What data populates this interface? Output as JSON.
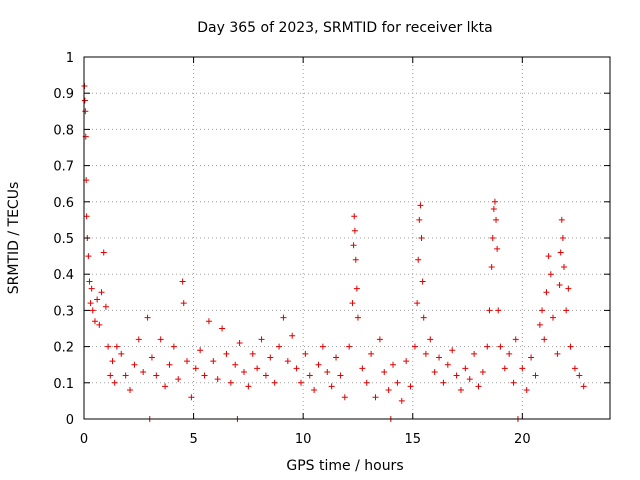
{
  "chart_data": {
    "type": "scatter",
    "title": "Day 365 of 2023, SRMTID for receiver lkta",
    "xlabel": "GPS time / hours",
    "ylabel": "SRMTID / TECUs",
    "xlim": [
      0,
      24
    ],
    "ylim": [
      0,
      1
    ],
    "x_ticks": [
      0,
      5,
      10,
      15,
      20
    ],
    "x_tick_labels": [
      "0",
      "5",
      "10",
      "15",
      "20"
    ],
    "y_ticks": [
      0,
      0.1,
      0.2,
      0.3,
      0.4,
      0.5,
      0.6,
      0.7,
      0.8,
      0.9,
      1
    ],
    "y_tick_labels": [
      "0",
      "0.1",
      "0.2",
      "0.3",
      "0.4",
      "0.5",
      "0.6",
      "0.7",
      "0.8",
      "0.9",
      "1"
    ],
    "grid": true,
    "marker": "+",
    "color": "#e00000",
    "series": [
      {
        "name": "SRMTID",
        "x": [
          0.02,
          0.04,
          0.06,
          0.08,
          0.1,
          0.12,
          0.15,
          0.2,
          0.25,
          0.3,
          0.35,
          0.4,
          0.5,
          0.6,
          0.7,
          0.8,
          0.9,
          1.0,
          1.1,
          1.2,
          1.3,
          1.4,
          1.5,
          1.7,
          1.9,
          2.1,
          2.3,
          2.5,
          2.7,
          2.9,
          3.0,
          3.1,
          3.3,
          3.5,
          3.7,
          3.9,
          4.1,
          4.3,
          4.5,
          4.55,
          4.7,
          4.9,
          5.1,
          5.3,
          5.5,
          5.7,
          5.9,
          6.1,
          6.3,
          6.5,
          6.7,
          6.9,
          7.0,
          7.1,
          7.3,
          7.5,
          7.7,
          7.9,
          8.1,
          8.3,
          8.5,
          8.7,
          8.9,
          9.1,
          9.3,
          9.5,
          9.7,
          9.9,
          10.1,
          10.3,
          10.5,
          10.7,
          10.9,
          11.1,
          11.3,
          11.5,
          11.7,
          11.9,
          12.1,
          12.25,
          12.3,
          12.33,
          12.36,
          12.4,
          12.45,
          12.5,
          12.7,
          12.9,
          13.1,
          13.3,
          13.5,
          13.7,
          13.9,
          14.0,
          14.1,
          14.3,
          14.5,
          14.7,
          14.9,
          15.1,
          15.2,
          15.25,
          15.3,
          15.35,
          15.4,
          15.45,
          15.5,
          15.6,
          15.8,
          16.0,
          16.2,
          16.4,
          16.6,
          16.8,
          17.0,
          17.2,
          17.4,
          17.6,
          17.8,
          18.0,
          18.2,
          18.4,
          18.5,
          18.6,
          18.65,
          18.7,
          18.75,
          18.8,
          18.85,
          18.9,
          19.0,
          19.2,
          19.4,
          19.6,
          19.7,
          19.8,
          20.0,
          20.2,
          20.4,
          20.6,
          20.8,
          20.9,
          21.0,
          21.1,
          21.2,
          21.3,
          21.4,
          21.6,
          21.7,
          21.75,
          21.8,
          21.85,
          21.9,
          22.0,
          22.1,
          22.2,
          22.4,
          22.6,
          22.8
        ],
        "y": [
          0.92,
          0.88,
          0.85,
          0.78,
          0.66,
          0.56,
          0.5,
          0.45,
          0.38,
          0.32,
          0.36,
          0.3,
          0.27,
          0.33,
          0.26,
          0.35,
          0.46,
          0.31,
          0.2,
          0.12,
          0.16,
          0.1,
          0.2,
          0.18,
          0.12,
          0.08,
          0.15,
          0.22,
          0.13,
          0.28,
          0.0,
          0.17,
          0.12,
          0.22,
          0.09,
          0.15,
          0.2,
          0.11,
          0.38,
          0.32,
          0.16,
          0.06,
          0.14,
          0.19,
          0.12,
          0.27,
          0.16,
          0.11,
          0.25,
          0.18,
          0.1,
          0.15,
          0.0,
          0.21,
          0.13,
          0.09,
          0.18,
          0.14,
          0.22,
          0.12,
          0.17,
          0.1,
          0.2,
          0.28,
          0.16,
          0.23,
          0.14,
          0.1,
          0.18,
          0.12,
          0.08,
          0.15,
          0.2,
          0.13,
          0.09,
          0.17,
          0.12,
          0.06,
          0.2,
          0.32,
          0.48,
          0.56,
          0.52,
          0.44,
          0.36,
          0.28,
          0.14,
          0.1,
          0.18,
          0.06,
          0.22,
          0.13,
          0.08,
          0.0,
          0.15,
          0.1,
          0.05,
          0.16,
          0.09,
          0.2,
          0.32,
          0.44,
          0.55,
          0.59,
          0.5,
          0.38,
          0.28,
          0.18,
          0.22,
          0.13,
          0.17,
          0.1,
          0.15,
          0.19,
          0.12,
          0.08,
          0.14,
          0.11,
          0.18,
          0.09,
          0.13,
          0.2,
          0.3,
          0.42,
          0.5,
          0.58,
          0.6,
          0.55,
          0.47,
          0.3,
          0.2,
          0.14,
          0.18,
          0.1,
          0.22,
          0.0,
          0.14,
          0.08,
          0.17,
          0.12,
          0.26,
          0.3,
          0.22,
          0.35,
          0.45,
          0.4,
          0.28,
          0.18,
          0.37,
          0.46,
          0.55,
          0.5,
          0.42,
          0.3,
          0.36,
          0.2,
          0.14,
          0.12,
          0.09
        ]
      }
    ]
  }
}
